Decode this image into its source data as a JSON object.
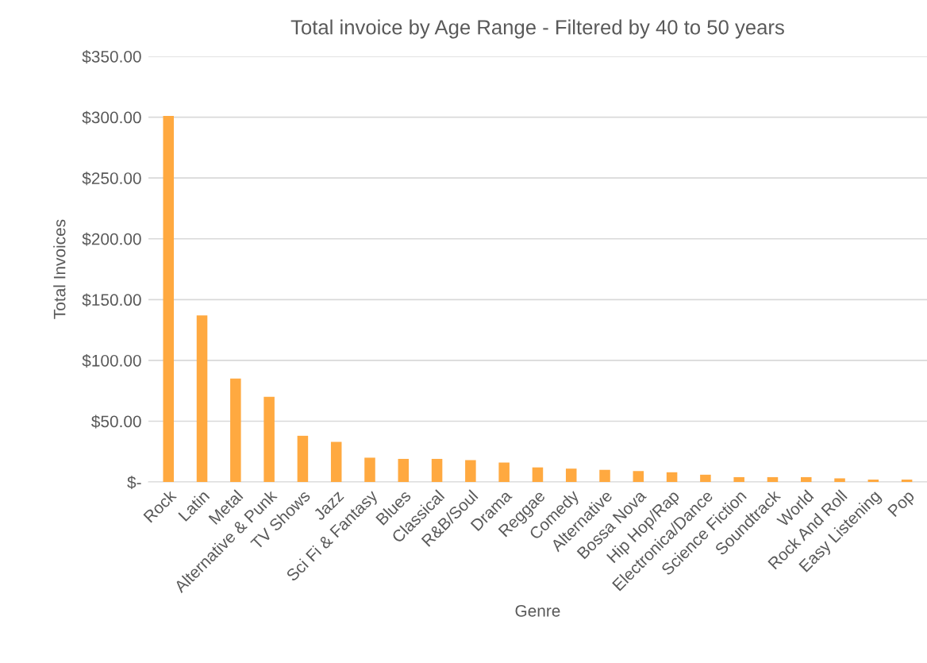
{
  "chart_data": {
    "type": "bar",
    "title": "Total invoice by Age Range - Filtered by 40 to 50 years",
    "xlabel": "Genre",
    "ylabel": "Total Invoices",
    "categories": [
      "Rock",
      "Latin",
      "Metal",
      "Alternative & Punk",
      "TV Shows",
      "Jazz",
      "Sci Fi & Fantasy",
      "Blues",
      "Classical",
      "R&B/Soul",
      "Drama",
      "Reggae",
      "Comedy",
      "Alternative",
      "Bossa Nova",
      "Hip Hop/Rap",
      "Electronica/Dance",
      "Science Fiction",
      "Soundtrack",
      "World",
      "Rock And Roll",
      "Easy Listening",
      "Pop"
    ],
    "values": [
      301,
      137,
      85,
      70,
      38,
      33,
      20,
      19,
      19,
      18,
      16,
      12,
      11,
      10,
      9,
      8,
      6,
      4,
      4,
      4,
      3,
      2,
      2
    ],
    "color": "#ffa940",
    "ylim": [
      0,
      350
    ],
    "yticks": [
      {
        "value": 0,
        "label": "$-"
      },
      {
        "value": 50,
        "label": "$50.00"
      },
      {
        "value": 100,
        "label": "$100.00"
      },
      {
        "value": 150,
        "label": "$150.00"
      },
      {
        "value": 200,
        "label": "$200.00"
      },
      {
        "value": 250,
        "label": "$250.00"
      },
      {
        "value": 300,
        "label": "$300.00"
      },
      {
        "value": 350,
        "label": "$350.00"
      }
    ],
    "grid": "y"
  }
}
